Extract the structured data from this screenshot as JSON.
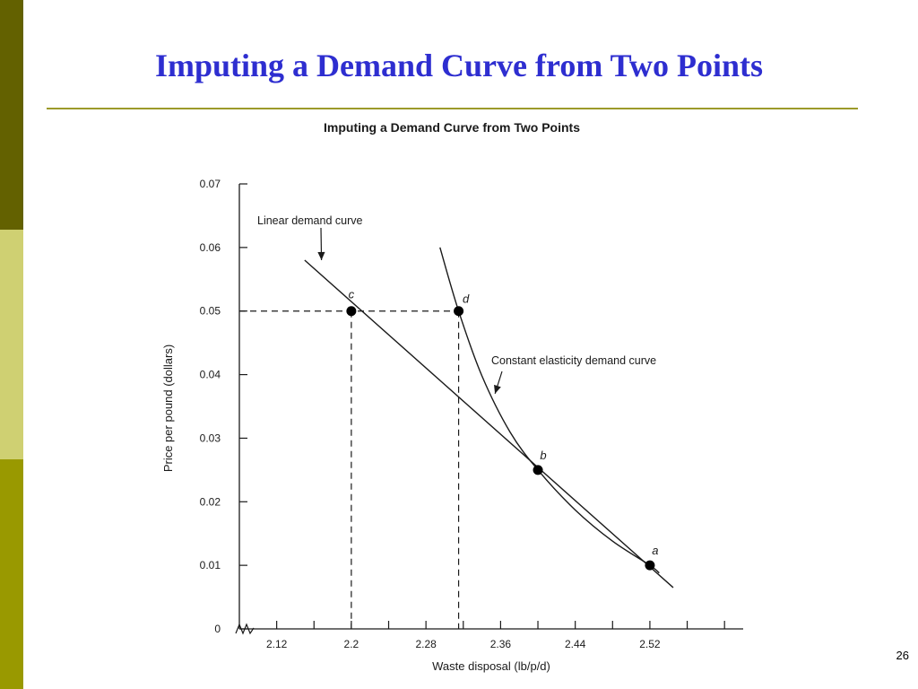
{
  "slide": {
    "title": "Imputing a Demand Curve from Two Points",
    "number": "26",
    "colors": {
      "title": "#2e2ed0",
      "rule": "#9c9a2a",
      "sidebar_dark": "#636100",
      "sidebar_light": "#cfd072",
      "sidebar_mid": "#999900"
    }
  },
  "chart_data": {
    "type": "line",
    "title": "Imputing a Demand Curve from Two Points",
    "xlabel": "Waste disposal (lb/p/d)",
    "ylabel": "Price per pound (dollars)",
    "xlim": [
      2.08,
      2.62
    ],
    "ylim": [
      0,
      0.07
    ],
    "x_ticks": [
      2.12,
      2.2,
      2.28,
      2.36,
      2.44,
      2.52
    ],
    "y_ticks": [
      0,
      0.01,
      0.02,
      0.03,
      0.04,
      0.05,
      0.06,
      0.07
    ],
    "x_tick_labels": [
      "2.12",
      "2.2",
      "2.28",
      "2.36",
      "2.44",
      "2.52"
    ],
    "y_tick_labels": [
      "0",
      "0.01",
      "0.02",
      "0.03",
      "0.04",
      "0.05",
      "0.06",
      "0.07"
    ],
    "axis_break": true,
    "grid": false,
    "series": [
      {
        "name": "Linear demand curve",
        "style": "solid",
        "x": [
          2.15,
          2.545
        ],
        "y": [
          0.058,
          0.0065
        ]
      },
      {
        "name": "Constant elasticity demand curve",
        "style": "solid",
        "x": [
          2.295,
          2.315,
          2.34,
          2.37,
          2.4,
          2.44,
          2.48,
          2.52,
          2.53
        ],
        "y": [
          0.06,
          0.05,
          0.0398,
          0.031,
          0.025,
          0.0187,
          0.0138,
          0.01,
          0.0088
        ]
      }
    ],
    "points": [
      {
        "label": "a",
        "x": 2.52,
        "y": 0.01
      },
      {
        "label": "b",
        "x": 2.4,
        "y": 0.025
      },
      {
        "label": "c",
        "x": 2.2,
        "y": 0.05
      },
      {
        "label": "d",
        "x": 2.315,
        "y": 0.05
      }
    ],
    "reference_lines": [
      {
        "from": [
          2.08,
          0.05
        ],
        "to": [
          2.315,
          0.05
        ],
        "style": "dashed"
      },
      {
        "from": [
          2.2,
          0.05
        ],
        "to": [
          2.2,
          0.0
        ],
        "style": "dashed"
      },
      {
        "from": [
          2.315,
          0.05
        ],
        "to": [
          2.315,
          0.0
        ],
        "style": "dashed"
      }
    ],
    "annotations": [
      {
        "text": "Linear demand curve",
        "arrow_to": [
          2.168,
          0.058
        ]
      },
      {
        "text": "Constant elasticity demand curve",
        "arrow_to": [
          2.354,
          0.037
        ]
      }
    ]
  }
}
